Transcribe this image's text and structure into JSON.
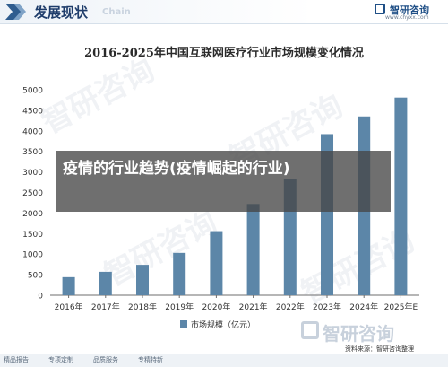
{
  "header": {
    "title": "发展现状",
    "title_en": "Chain",
    "brand_name": "智研咨询",
    "brand_url": "www.chyxx.com"
  },
  "overlay": {
    "text": "疫情的行业趋势(疫情崛起的行业)"
  },
  "footer": {
    "brand": "智研咨询",
    "source": "资料来源：智研咨询整理",
    "links": [
      "精品报告",
      "专项定制",
      "品质服务",
      "专精特新"
    ]
  },
  "colors": {
    "bar": "#5c86a8",
    "axis": "#6e6e6e",
    "text": "#333333"
  },
  "chart_data": {
    "type": "bar",
    "title": "2016-2025年中国互联网医疗行业市场规模变化情况",
    "categories": [
      "2016年",
      "2017年",
      "2018年",
      "2019年",
      "2020年",
      "2021年",
      "2022年",
      "2023年",
      "2024年",
      "2025年E"
    ],
    "series": [
      {
        "name": "市场规模（亿元）",
        "values": [
          440,
          570,
          740,
          1030,
          1560,
          2220,
          2830,
          3920,
          4350,
          4810
        ]
      }
    ],
    "ylim": [
      0,
      5000
    ],
    "yticks": [
      0,
      500,
      1000,
      1500,
      2000,
      2500,
      3000,
      3500,
      4000,
      4500,
      5000
    ],
    "xlabel": "",
    "ylabel": "",
    "legend": "bottom",
    "grid": false
  }
}
